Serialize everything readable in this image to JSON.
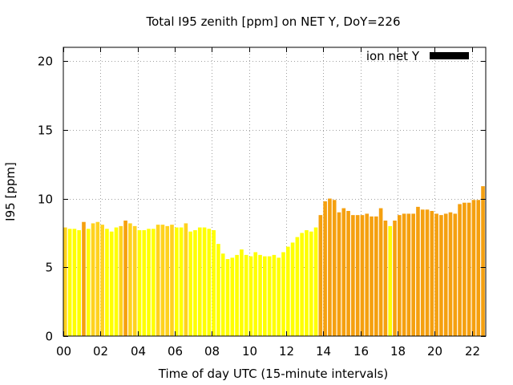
{
  "chart_data": {
    "type": "bar",
    "title": "Total I95 zenith [ppm] on NET Y, DoY=226",
    "xlabel": "Time of day UTC (15-minute intervals)",
    "ylabel": "I95 [ppm]",
    "xlim": [
      0,
      22.75
    ],
    "ylim": [
      0,
      21
    ],
    "x_ticks": [
      "00",
      "02",
      "04",
      "06",
      "08",
      "10",
      "12",
      "14",
      "16",
      "18",
      "20",
      "22"
    ],
    "y_ticks": [
      "0",
      "5",
      "10",
      "15",
      "20"
    ],
    "grid": true,
    "legend": {
      "label": "ion net Y",
      "position": "top-right",
      "color": "#000000"
    },
    "bar_width_hours": 0.2,
    "colors": {
      "yellow": "#ffff00",
      "gold": "#ffd21e",
      "orange": "#f5a00f"
    },
    "x": [
      0.0,
      0.25,
      0.5,
      0.75,
      1.0,
      1.25,
      1.5,
      1.75,
      2.0,
      2.25,
      2.5,
      2.75,
      3.0,
      3.25,
      3.5,
      3.75,
      4.0,
      4.25,
      4.5,
      4.75,
      5.0,
      5.25,
      5.5,
      5.75,
      6.0,
      6.25,
      6.5,
      6.75,
      7.0,
      7.25,
      7.5,
      7.75,
      8.0,
      8.25,
      8.5,
      8.75,
      9.0,
      9.25,
      9.5,
      9.75,
      10.0,
      10.25,
      10.5,
      10.75,
      11.0,
      11.25,
      11.5,
      11.75,
      12.0,
      12.25,
      12.5,
      12.75,
      13.0,
      13.25,
      13.5,
      13.75,
      14.0,
      14.25,
      14.5,
      14.75,
      15.0,
      15.25,
      15.5,
      15.75,
      16.0,
      16.25,
      16.5,
      16.75,
      17.0,
      17.25,
      17.5,
      17.75,
      18.0,
      18.25,
      18.5,
      18.75,
      19.0,
      19.25,
      19.5,
      19.75,
      20.0,
      20.25,
      20.5,
      20.75,
      21.0,
      21.25,
      21.5,
      21.75,
      22.0,
      22.25,
      22.5
    ],
    "values": [
      7.9,
      7.8,
      7.8,
      7.7,
      8.3,
      7.8,
      8.2,
      8.3,
      8.1,
      7.8,
      7.6,
      7.9,
      8.0,
      8.4,
      8.2,
      8.0,
      7.7,
      7.7,
      7.8,
      7.8,
      8.1,
      8.1,
      8.0,
      8.1,
      7.9,
      7.9,
      8.2,
      7.6,
      7.7,
      7.9,
      7.9,
      7.8,
      7.7,
      6.7,
      6.0,
      5.6,
      5.7,
      5.9,
      6.3,
      5.9,
      5.8,
      6.1,
      5.9,
      5.8,
      5.8,
      5.9,
      5.7,
      6.1,
      6.5,
      6.8,
      7.2,
      7.5,
      7.7,
      7.6,
      7.9,
      8.8,
      9.8,
      10.0,
      9.9,
      9.0,
      9.3,
      9.1,
      8.8,
      8.8,
      8.8,
      8.9,
      8.7,
      8.7,
      9.3,
      8.4,
      8.0,
      8.4,
      8.8,
      8.9,
      8.9,
      8.9,
      9.4,
      9.2,
      9.2,
      9.1,
      8.9,
      8.8,
      8.9,
      9.0,
      8.9,
      9.6,
      9.7,
      9.7,
      9.9,
      9.9,
      10.9
    ],
    "bar_colors": [
      "gold",
      "yellow",
      "yellow",
      "yellow",
      "orange",
      "yellow",
      "gold",
      "gold",
      "gold",
      "yellow",
      "yellow",
      "yellow",
      "gold",
      "orange",
      "gold",
      "gold",
      "yellow",
      "yellow",
      "yellow",
      "yellow",
      "gold",
      "gold",
      "gold",
      "gold",
      "yellow",
      "yellow",
      "gold",
      "yellow",
      "yellow",
      "yellow",
      "yellow",
      "yellow",
      "yellow",
      "yellow",
      "yellow",
      "yellow",
      "yellow",
      "yellow",
      "yellow",
      "yellow",
      "yellow",
      "yellow",
      "yellow",
      "yellow",
      "yellow",
      "yellow",
      "yellow",
      "yellow",
      "yellow",
      "yellow",
      "yellow",
      "yellow",
      "yellow",
      "yellow",
      "yellow",
      "orange",
      "orange",
      "orange",
      "orange",
      "orange",
      "orange",
      "orange",
      "orange",
      "orange",
      "orange",
      "orange",
      "orange",
      "orange",
      "orange",
      "orange",
      "yellow",
      "orange",
      "orange",
      "orange",
      "orange",
      "orange",
      "orange",
      "orange",
      "orange",
      "orange",
      "orange",
      "orange",
      "orange",
      "orange",
      "orange",
      "orange",
      "orange",
      "orange",
      "orange",
      "orange",
      "orange"
    ]
  }
}
